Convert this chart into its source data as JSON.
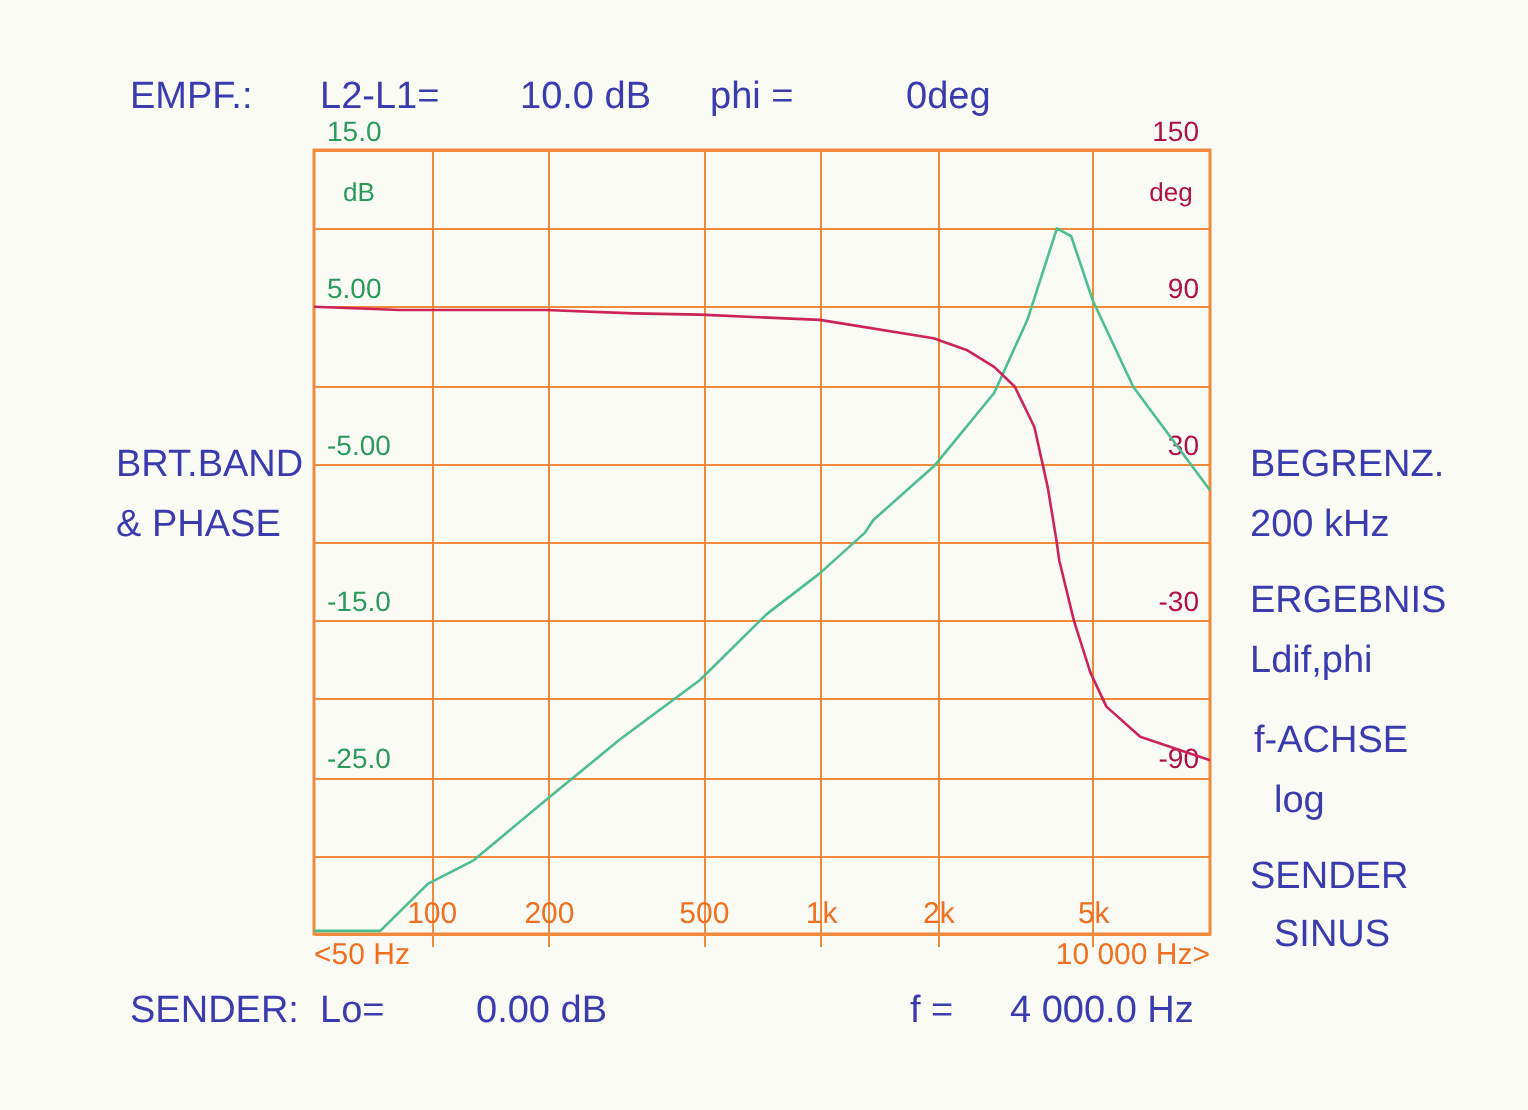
{
  "chart_data": {
    "type": "line",
    "ylabel": "dB",
    "y2label": "deg",
    "x": [
      50,
      74,
      98,
      128.5,
      196,
      305,
      490,
      727,
      995,
      1300,
      1366,
      1966,
      2790,
      3400,
      4045,
      4400,
      5000,
      6350,
      10000
    ],
    "series": [
      {
        "color": "#4cbf8c",
        "values": [
          -34.8,
          -34.8,
          -31.8,
          -30.3,
          -26.5,
          -22.6,
          -18.8,
          -14.6,
          -12.0,
          -9.4,
          -8.6,
          -5.1,
          -0.5,
          4.2,
          10.0,
          9.5,
          5.4,
          -0.1,
          -6.7
        ]
      },
      {
        "color": "#cc2458",
        "axis": "y2",
        "x": [
          50,
          83,
          197,
          330,
          490,
          995,
          1950,
          2370,
          2790,
          3150,
          3540,
          3830,
          4030,
          4100,
          4470,
          4930,
          5420,
          6620,
          10000
        ],
        "values": [
          90,
          88.8,
          88.8,
          87.5,
          87,
          85,
          78,
          73.5,
          67,
          59.5,
          44,
          21,
          1,
          -7,
          -30,
          -50,
          -63,
          -74.5,
          -83.5
        ]
      }
    ],
    "log": "x",
    "xlim": [
      50,
      10000
    ],
    "xticks": [
      100,
      200,
      500,
      {
        "value": 1000,
        "label": "1k"
      },
      {
        "value": 2000,
        "label": "2k"
      },
      {
        "value": 5000,
        "label": "5k"
      }
    ],
    "ylim": [
      -35,
      15
    ],
    "yticks": [
      {
        "value": 15,
        "label": "15.0"
      },
      {
        "value": 10,
        "label": null
      },
      {
        "value": 5,
        "label": "5.00"
      },
      {
        "value": 0,
        "label": null
      },
      {
        "value": -5,
        "label": "-5.00"
      },
      {
        "value": -10,
        "label": null
      },
      {
        "value": -15,
        "label": "-15.0"
      },
      {
        "value": -20,
        "label": null
      },
      {
        "value": -25,
        "label": "-25.0"
      },
      {
        "value": -30,
        "label": null
      },
      {
        "value": -35,
        "label": null
      }
    ],
    "y2lim": [
      -150,
      150
    ],
    "y2ticks": [
      150,
      90,
      30,
      -30,
      -90
    ],
    "grid": true,
    "annotations": [
      "EMPF.:",
      "L2-L1=",
      "10.0 dB",
      "phi =",
      "0deg",
      "BRT.BAND",
      "& PHASE",
      "BEGRENZ.",
      "200 kHz",
      "ERGEBNIS",
      "Ldif,phi",
      "f-ACHSE",
      "log",
      "SENDER",
      "SINUS",
      "SENDER:",
      "Lo=",
      "0.00 dB",
      "f =",
      "4 000.0 Hz",
      "<50 Hz",
      "10 000 Hz>"
    ]
  }
}
